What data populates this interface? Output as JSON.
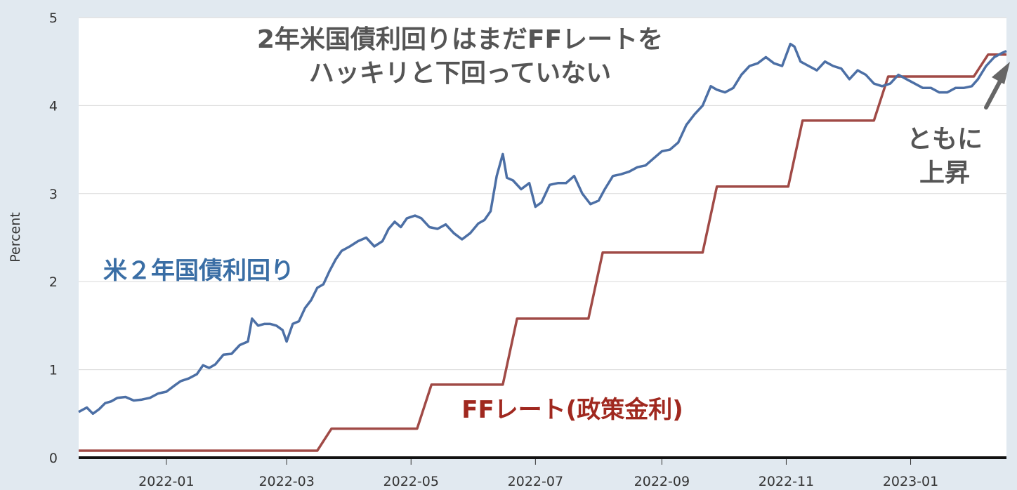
{
  "chart_data": {
    "type": "line",
    "ylabel": "Percent",
    "ylim": [
      0,
      5
    ],
    "yticks": [
      "0",
      "1",
      "2",
      "3",
      "4",
      "5"
    ],
    "xlim": [
      "2021-11-19",
      "2023-02-17"
    ],
    "xticks": [
      {
        "date": "2022-01-01",
        "label": "2022-01"
      },
      {
        "date": "2022-03-01",
        "label": "2022-03"
      },
      {
        "date": "2022-05-01",
        "label": "2022-05"
      },
      {
        "date": "2022-07-01",
        "label": "2022-07"
      },
      {
        "date": "2022-09-01",
        "label": "2022-09"
      },
      {
        "date": "2022-11-01",
        "label": "2022-11"
      },
      {
        "date": "2023-01-01",
        "label": "2023-01"
      }
    ],
    "grid": true,
    "colors": {
      "treasury": "#4c6fa5",
      "ffrate": "#a04a46",
      "background": "#e1e9f0",
      "plot": "#ffffff"
    },
    "series": [
      {
        "name": "米２年国債利回り",
        "color": "#4c6fa5",
        "points": [
          [
            "2021-11-19",
            0.52
          ],
          [
            "2021-11-23",
            0.57
          ],
          [
            "2021-11-26",
            0.5
          ],
          [
            "2021-11-29",
            0.55
          ],
          [
            "2021-12-02",
            0.62
          ],
          [
            "2021-12-05",
            0.64
          ],
          [
            "2021-12-08",
            0.68
          ],
          [
            "2021-12-12",
            0.69
          ],
          [
            "2021-12-16",
            0.65
          ],
          [
            "2021-12-20",
            0.66
          ],
          [
            "2021-12-24",
            0.68
          ],
          [
            "2021-12-28",
            0.73
          ],
          [
            "2022-01-01",
            0.75
          ],
          [
            "2022-01-05",
            0.82
          ],
          [
            "2022-01-08",
            0.87
          ],
          [
            "2022-01-12",
            0.9
          ],
          [
            "2022-01-16",
            0.95
          ],
          [
            "2022-01-19",
            1.05
          ],
          [
            "2022-01-22",
            1.02
          ],
          [
            "2022-01-25",
            1.06
          ],
          [
            "2022-01-29",
            1.17
          ],
          [
            "2022-02-02",
            1.18
          ],
          [
            "2022-02-06",
            1.28
          ],
          [
            "2022-02-10",
            1.32
          ],
          [
            "2022-02-12",
            1.58
          ],
          [
            "2022-02-15",
            1.5
          ],
          [
            "2022-02-18",
            1.52
          ],
          [
            "2022-02-21",
            1.52
          ],
          [
            "2022-02-24",
            1.5
          ],
          [
            "2022-02-27",
            1.45
          ],
          [
            "2022-03-01",
            1.32
          ],
          [
            "2022-03-04",
            1.52
          ],
          [
            "2022-03-07",
            1.55
          ],
          [
            "2022-03-10",
            1.7
          ],
          [
            "2022-03-13",
            1.79
          ],
          [
            "2022-03-16",
            1.93
          ],
          [
            "2022-03-19",
            1.97
          ],
          [
            "2022-03-22",
            2.12
          ],
          [
            "2022-03-25",
            2.25
          ],
          [
            "2022-03-28",
            2.35
          ],
          [
            "2022-04-01",
            2.4
          ],
          [
            "2022-04-05",
            2.46
          ],
          [
            "2022-04-09",
            2.5
          ],
          [
            "2022-04-13",
            2.4
          ],
          [
            "2022-04-17",
            2.46
          ],
          [
            "2022-04-20",
            2.6
          ],
          [
            "2022-04-23",
            2.68
          ],
          [
            "2022-04-26",
            2.62
          ],
          [
            "2022-04-29",
            2.72
          ],
          [
            "2022-05-03",
            2.75
          ],
          [
            "2022-05-06",
            2.72
          ],
          [
            "2022-05-10",
            2.62
          ],
          [
            "2022-05-14",
            2.6
          ],
          [
            "2022-05-18",
            2.65
          ],
          [
            "2022-05-22",
            2.55
          ],
          [
            "2022-05-26",
            2.48
          ],
          [
            "2022-05-30",
            2.55
          ],
          [
            "2022-06-03",
            2.66
          ],
          [
            "2022-06-06",
            2.7
          ],
          [
            "2022-06-09",
            2.8
          ],
          [
            "2022-06-12",
            3.2
          ],
          [
            "2022-06-15",
            3.45
          ],
          [
            "2022-06-17",
            3.18
          ],
          [
            "2022-06-20",
            3.15
          ],
          [
            "2022-06-24",
            3.05
          ],
          [
            "2022-06-28",
            3.12
          ],
          [
            "2022-07-01",
            2.85
          ],
          [
            "2022-07-04",
            2.9
          ],
          [
            "2022-07-08",
            3.1
          ],
          [
            "2022-07-12",
            3.12
          ],
          [
            "2022-07-16",
            3.12
          ],
          [
            "2022-07-20",
            3.2
          ],
          [
            "2022-07-24",
            3.0
          ],
          [
            "2022-07-28",
            2.88
          ],
          [
            "2022-08-01",
            2.92
          ],
          [
            "2022-08-04",
            3.05
          ],
          [
            "2022-08-08",
            3.2
          ],
          [
            "2022-08-12",
            3.22
          ],
          [
            "2022-08-16",
            3.25
          ],
          [
            "2022-08-20",
            3.3
          ],
          [
            "2022-08-24",
            3.32
          ],
          [
            "2022-08-28",
            3.4
          ],
          [
            "2022-09-01",
            3.48
          ],
          [
            "2022-09-05",
            3.5
          ],
          [
            "2022-09-09",
            3.58
          ],
          [
            "2022-09-13",
            3.78
          ],
          [
            "2022-09-17",
            3.9
          ],
          [
            "2022-09-21",
            4.0
          ],
          [
            "2022-09-25",
            4.22
          ],
          [
            "2022-09-28",
            4.18
          ],
          [
            "2022-10-02",
            4.15
          ],
          [
            "2022-10-06",
            4.2
          ],
          [
            "2022-10-10",
            4.35
          ],
          [
            "2022-10-14",
            4.45
          ],
          [
            "2022-10-18",
            4.48
          ],
          [
            "2022-10-22",
            4.55
          ],
          [
            "2022-10-26",
            4.48
          ],
          [
            "2022-10-30",
            4.45
          ],
          [
            "2022-11-03",
            4.7
          ],
          [
            "2022-11-05",
            4.67
          ],
          [
            "2022-11-08",
            4.5
          ],
          [
            "2022-11-12",
            4.45
          ],
          [
            "2022-11-16",
            4.4
          ],
          [
            "2022-11-20",
            4.5
          ],
          [
            "2022-11-24",
            4.45
          ],
          [
            "2022-11-28",
            4.42
          ],
          [
            "2022-12-02",
            4.3
          ],
          [
            "2022-12-06",
            4.4
          ],
          [
            "2022-12-10",
            4.35
          ],
          [
            "2022-12-14",
            4.25
          ],
          [
            "2022-12-18",
            4.22
          ],
          [
            "2022-12-22",
            4.25
          ],
          [
            "2022-12-26",
            4.35
          ],
          [
            "2022-12-30",
            4.3
          ],
          [
            "2023-01-03",
            4.25
          ],
          [
            "2023-01-07",
            4.2
          ],
          [
            "2023-01-11",
            4.2
          ],
          [
            "2023-01-15",
            4.15
          ],
          [
            "2023-01-19",
            4.15
          ],
          [
            "2023-01-23",
            4.2
          ],
          [
            "2023-01-27",
            4.2
          ],
          [
            "2023-01-31",
            4.22
          ],
          [
            "2023-02-03",
            4.3
          ],
          [
            "2023-02-07",
            4.45
          ],
          [
            "2023-02-11",
            4.55
          ],
          [
            "2023-02-15",
            4.6
          ],
          [
            "2023-02-17",
            4.62
          ]
        ]
      },
      {
        "name": "FFレート(政策金利)",
        "color": "#a04a46",
        "points": [
          [
            "2021-11-19",
            0.08
          ],
          [
            "2022-03-16",
            0.08
          ],
          [
            "2022-03-23",
            0.33
          ],
          [
            "2022-05-04",
            0.33
          ],
          [
            "2022-05-11",
            0.83
          ],
          [
            "2022-06-15",
            0.83
          ],
          [
            "2022-06-22",
            1.58
          ],
          [
            "2022-07-27",
            1.58
          ],
          [
            "2022-08-03",
            2.33
          ],
          [
            "2022-09-21",
            2.33
          ],
          [
            "2022-09-28",
            3.08
          ],
          [
            "2022-11-02",
            3.08
          ],
          [
            "2022-11-09",
            3.83
          ],
          [
            "2022-12-14",
            3.83
          ],
          [
            "2022-12-21",
            4.33
          ],
          [
            "2023-02-01",
            4.33
          ],
          [
            "2023-02-08",
            4.58
          ],
          [
            "2023-02-17",
            4.58
          ]
        ]
      }
    ],
    "annotations": {
      "title_line1": "2年米国債利回りはまだFFレートを",
      "title_line2": "ハッキリと下回っていない",
      "treasury_label": "米２年国債利回り",
      "ffrate_label": "FFレート(政策金利)",
      "both_line1": "ともに",
      "both_line2": "上昇"
    }
  }
}
